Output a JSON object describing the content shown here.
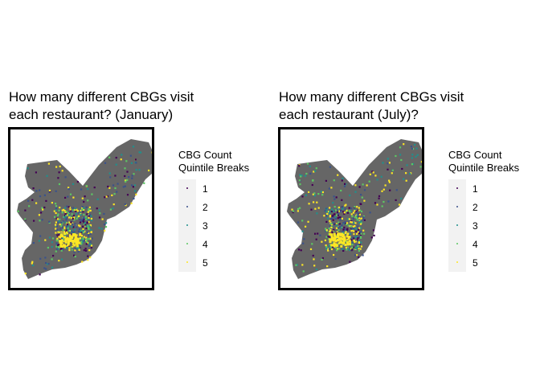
{
  "palette": {
    "background": "#ffffff",
    "map_fill": "#666666",
    "frame": "#000000",
    "legend_key_bg": "#f2f2f2"
  },
  "panels": [
    {
      "title_line1": "How many different CBGs visit",
      "title_line2": "each restaurant? (January)",
      "legend_title_line1": "CBG Count",
      "legend_title_line2": "Quintile Breaks"
    },
    {
      "title_line1": "How many different CBGs visit",
      "title_line2": "each restaurant (July)?",
      "legend_title_line1": "CBG Count",
      "legend_title_line2": "Quintile Breaks"
    }
  ],
  "legend_items": [
    {
      "label": "1",
      "color": "#440154"
    },
    {
      "label": "2",
      "color": "#3b528b"
    },
    {
      "label": "3",
      "color": "#21908c"
    },
    {
      "label": "4",
      "color": "#5dc863"
    },
    {
      "label": "5",
      "color": "#fde725"
    }
  ]
}
